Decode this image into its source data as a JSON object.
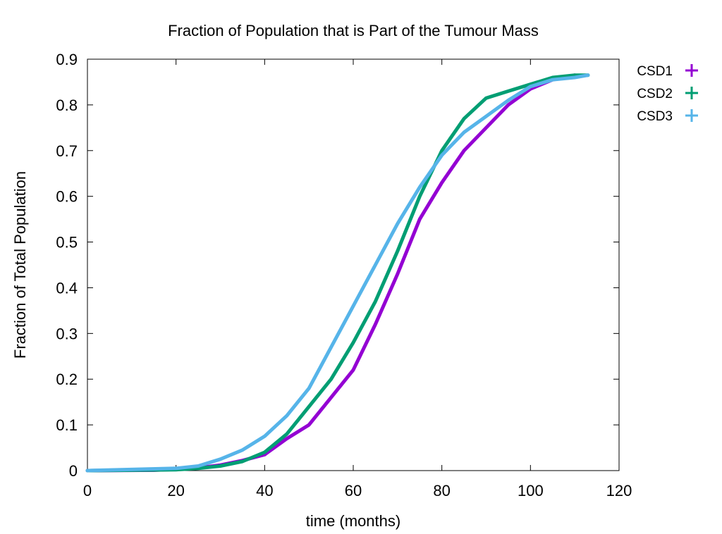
{
  "chart_data": {
    "type": "line",
    "title": "Fraction of Population that is Part of the Tumour Mass",
    "xlabel": "time (months)",
    "ylabel": "Fraction of Total Population",
    "xlim": [
      0,
      120
    ],
    "ylim": [
      0,
      0.9
    ],
    "xticks": [
      "0",
      "20",
      "40",
      "60",
      "80",
      "100",
      "120"
    ],
    "yticks": [
      "0",
      "0.1",
      "0.2",
      "0.3",
      "0.4",
      "0.5",
      "0.6",
      "0.7",
      "0.8",
      "0.9"
    ],
    "grid": false,
    "legend_position": "outside-right-top",
    "series": [
      {
        "name": "CSD1",
        "color": "#9400d3",
        "x": [
          0,
          15,
          20,
          25,
          30,
          35,
          40,
          45,
          50,
          55,
          60,
          65,
          70,
          75,
          80,
          85,
          90,
          95,
          100,
          105,
          110
        ],
        "y": [
          0,
          0.001,
          0.003,
          0.006,
          0.012,
          0.022,
          0.035,
          0.07,
          0.1,
          0.16,
          0.22,
          0.32,
          0.43,
          0.55,
          0.63,
          0.7,
          0.75,
          0.8,
          0.835,
          0.855,
          0.865
        ]
      },
      {
        "name": "CSD2",
        "color": "#009e73",
        "x": [
          0,
          20,
          25,
          30,
          35,
          40,
          45,
          50,
          55,
          60,
          65,
          70,
          75,
          80,
          85,
          90,
          95,
          100,
          105,
          110,
          113
        ],
        "y": [
          0,
          0.002,
          0.005,
          0.01,
          0.02,
          0.04,
          0.08,
          0.14,
          0.2,
          0.28,
          0.37,
          0.48,
          0.6,
          0.7,
          0.77,
          0.815,
          0.83,
          0.845,
          0.86,
          0.865,
          0.865
        ]
      },
      {
        "name": "CSD3",
        "color": "#56b4e9",
        "x": [
          0,
          20,
          25,
          30,
          35,
          40,
          45,
          50,
          55,
          60,
          65,
          70,
          75,
          80,
          85,
          90,
          95,
          100,
          105,
          110,
          113
        ],
        "y": [
          0,
          0.005,
          0.01,
          0.025,
          0.045,
          0.075,
          0.12,
          0.18,
          0.27,
          0.36,
          0.45,
          0.54,
          0.62,
          0.69,
          0.74,
          0.775,
          0.81,
          0.84,
          0.855,
          0.86,
          0.865
        ]
      }
    ]
  }
}
